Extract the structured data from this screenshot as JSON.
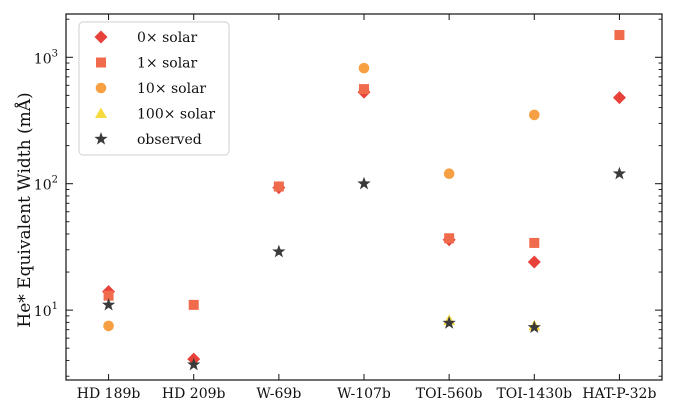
{
  "chart_data": {
    "type": "scatter",
    "ylabel": "He* Equivalent Width (mÅ)",
    "yscale": "log",
    "ylim": [
      2.8,
      2200
    ],
    "y_ticks": [
      {
        "value": 10,
        "base": "10",
        "exp": "1"
      },
      {
        "value": 100,
        "base": "10",
        "exp": "2"
      },
      {
        "value": 1000,
        "base": "10",
        "exp": "3"
      }
    ],
    "categories": [
      "HD 189b",
      "HD 209b",
      "W-69b",
      "W-107b",
      "TOI-560b",
      "TOI-1430b",
      "HAT-P-32b"
    ],
    "legend_position": "upper-left",
    "series": [
      {
        "name": "0× solar",
        "marker": "diamond",
        "color": "#e8413a",
        "values": [
          14,
          4.1,
          93,
          530,
          36,
          24,
          480
        ]
      },
      {
        "name": "1× solar",
        "marker": "square",
        "color": "#f06b4c",
        "values": [
          13,
          11,
          95,
          560,
          37,
          34,
          1500
        ]
      },
      {
        "name": "10× solar",
        "marker": "circle",
        "color": "#f6a043",
        "values": [
          7.5,
          null,
          null,
          820,
          120,
          350,
          null
        ]
      },
      {
        "name": "100× solar",
        "marker": "triangle",
        "color": "#f7d940",
        "values": [
          null,
          null,
          null,
          null,
          8.3,
          7.5,
          null
        ]
      },
      {
        "name": "observed",
        "marker": "star",
        "color": "#3a3a3a",
        "values": [
          11,
          3.7,
          29,
          100,
          7.9,
          7.3,
          120
        ]
      }
    ]
  }
}
